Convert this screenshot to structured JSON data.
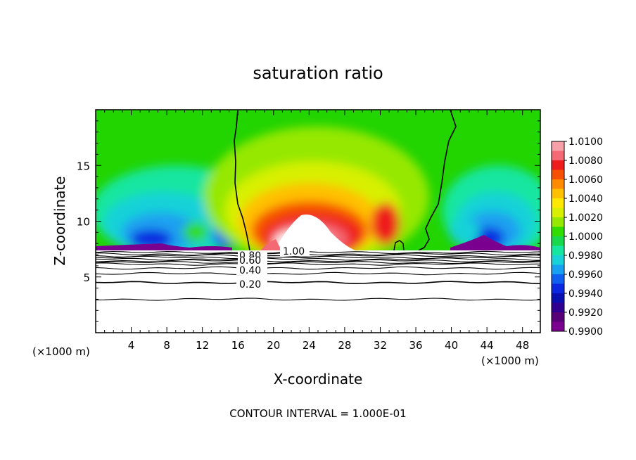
{
  "chart_data": {
    "type": "heatmap",
    "title": "saturation ratio",
    "xlabel": "X-coordinate",
    "ylabel": "Z-coordinate",
    "x_unit_left": "(×1000 m)",
    "x_unit_right": "(×1000 m)",
    "footer": "CONTOUR INTERVAL = 1.000E-01",
    "xlim": [
      0,
      50
    ],
    "ylim": [
      0,
      20
    ],
    "x_ticks": [
      4,
      8,
      12,
      16,
      20,
      24,
      28,
      32,
      36,
      40,
      44,
      48
    ],
    "x_tick_labels": [
      "4",
      "8",
      "12",
      "16",
      "20",
      "24",
      "28",
      "32",
      "36",
      "40",
      "44",
      "48"
    ],
    "y_ticks": [
      5,
      10,
      15
    ],
    "y_tick_labels": [
      "5",
      "10",
      "15"
    ],
    "colorbar": {
      "min": 0.99,
      "max": 1.01,
      "labels": [
        "1.0100",
        "1.0080",
        "1.0060",
        "1.0040",
        "1.0020",
        "1.0000",
        "0.9980",
        "0.9960",
        "0.9940",
        "0.9920",
        "0.9900"
      ],
      "colors": [
        "#f7a0a8",
        "#f46a74",
        "#ee1c1c",
        "#f55000",
        "#ff8c00",
        "#ffc000",
        "#ffe800",
        "#d8f000",
        "#96e800",
        "#32dc00",
        "#18d84c",
        "#16e6a0",
        "#18d2d8",
        "#1aa0f0",
        "#1060f0",
        "#0a28e0",
        "#0a10b0",
        "#300090",
        "#580078",
        "#7a0090"
      ]
    },
    "contour_lines": [
      {
        "level": 1.0,
        "label": "1.00"
      },
      {
        "level": 0.8,
        "label": "0.80"
      },
      {
        "level": 0.6,
        "label": "0.60"
      },
      {
        "level": 0.4,
        "label": "0.40"
      },
      {
        "level": 0.2,
        "label": "0.20"
      }
    ],
    "contour_levels_unlabeled_z": [
      7.2,
      7.05,
      6.9,
      6.75,
      6.6,
      6.45,
      6.3,
      6.15,
      5.8,
      5.3,
      4.5,
      3.0
    ],
    "saturation_contour_x": [
      16.0,
      39.8
    ]
  }
}
